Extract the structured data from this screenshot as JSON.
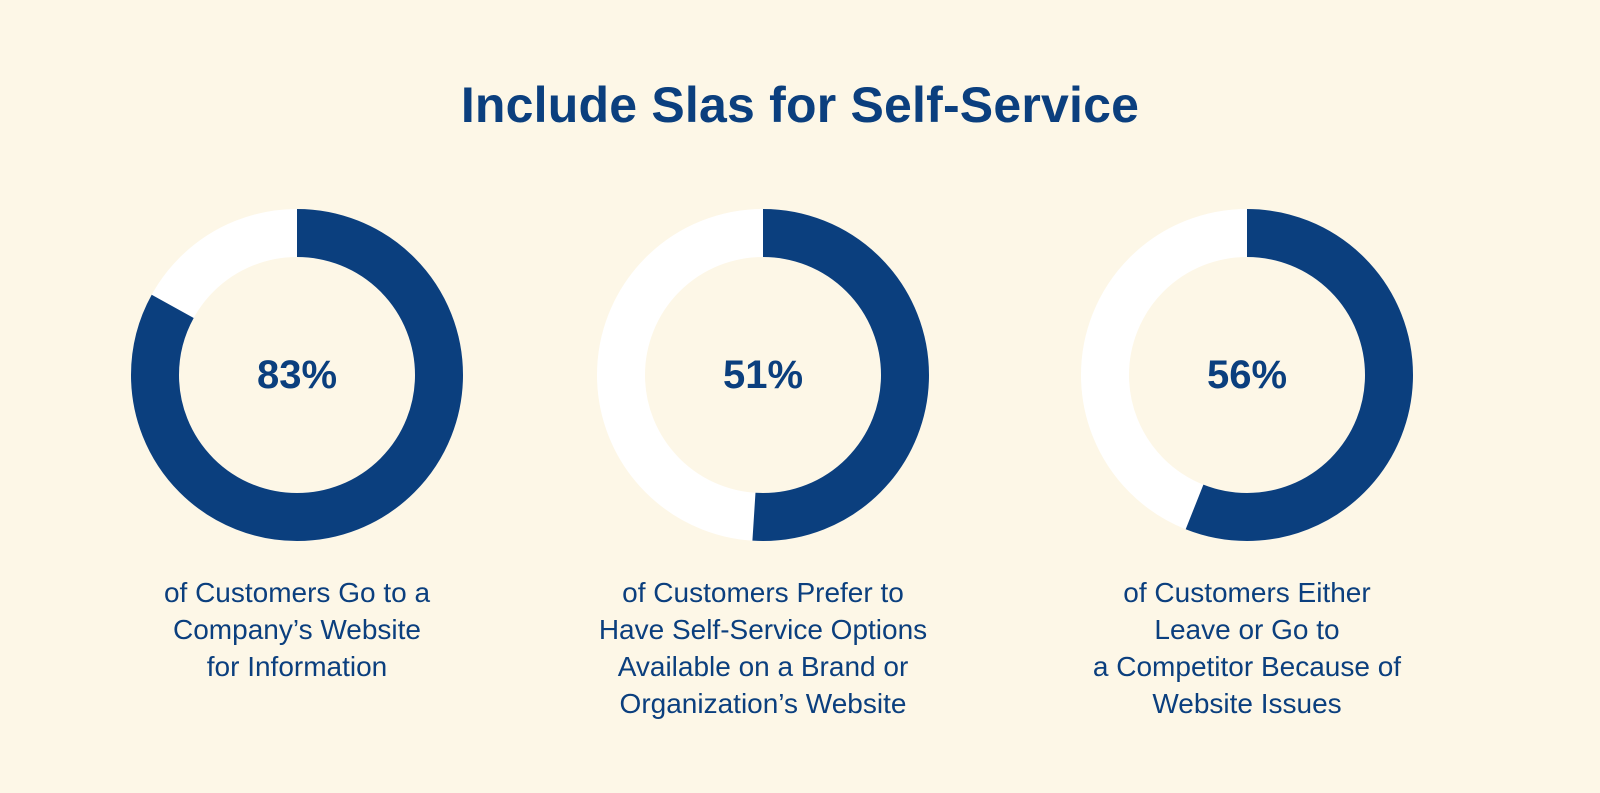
{
  "title": "Include Slas for Self-Service",
  "colors": {
    "background": "#FDF7E7",
    "filled": "#0B3F7E",
    "remainder": "#FFFFFF",
    "text": "#0B3F7E"
  },
  "chart_data": [
    {
      "type": "pie",
      "value": 83,
      "label": "83%",
      "caption_lines": [
        "of Customers Go to a",
        "Company’s Website",
        "for Information"
      ]
    },
    {
      "type": "pie",
      "value": 51,
      "label": "51%",
      "caption_lines": [
        "of Customers Prefer to",
        "Have Self-Service Options",
        "Available on a Brand or",
        "Organization’s Website"
      ]
    },
    {
      "type": "pie",
      "value": 56,
      "label": "56%",
      "caption_lines": [
        "of Customers Either",
        "Leave or Go to",
        "a Competitor Because of",
        "Website Issues"
      ]
    }
  ]
}
